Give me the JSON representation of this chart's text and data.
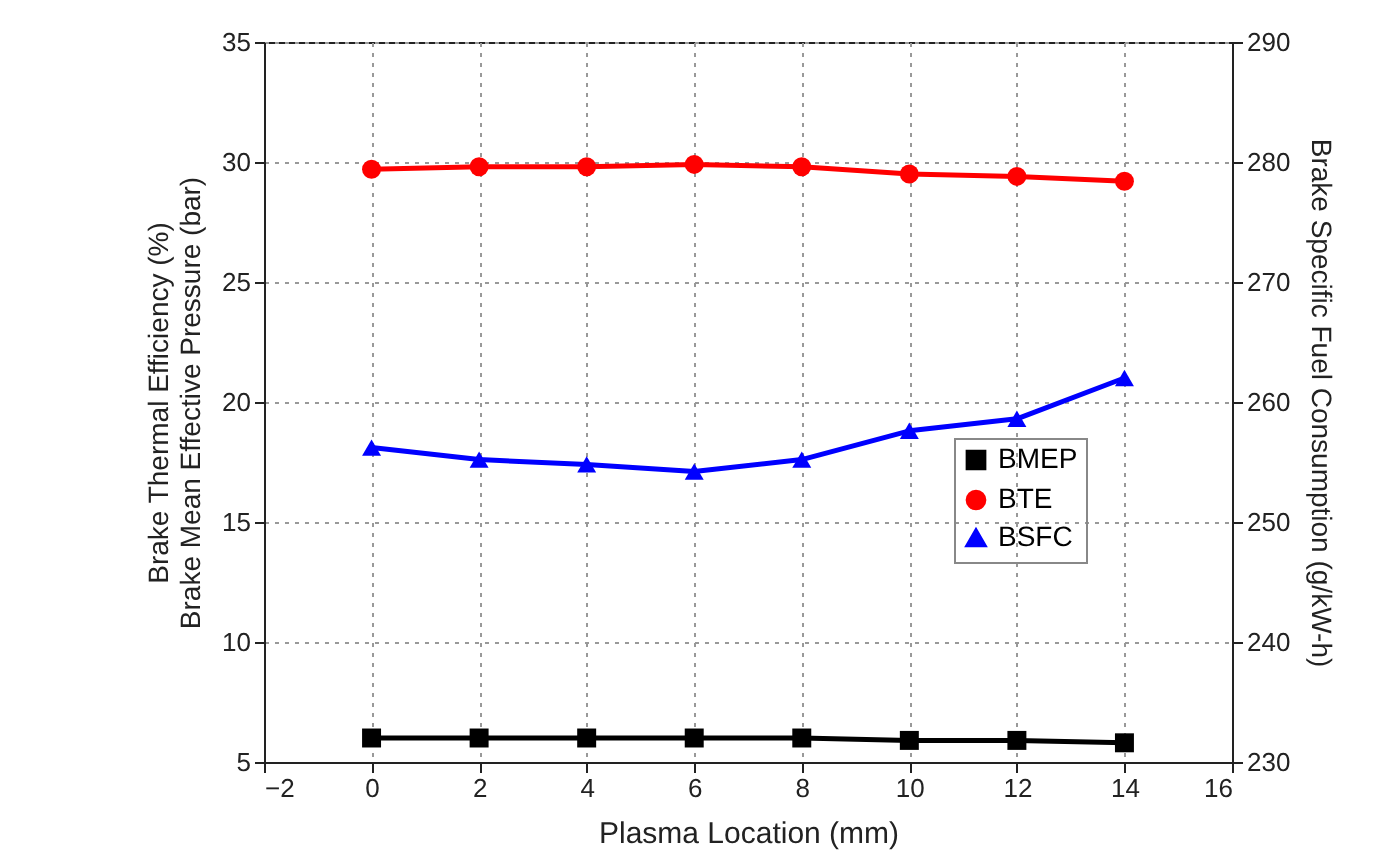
{
  "chart_data": {
    "type": "line",
    "xlabel": "Plasma Location (mm)",
    "ylabel": "Brake Thermal Efficiency (%)\nBrake Mean Effective Pressure (bar)",
    "y2label": "Brake Specific Fuel Consumption (g/kW-h)",
    "x": [
      0,
      2,
      4,
      6,
      8,
      10,
      12,
      14
    ],
    "series": [
      {
        "name": "BMEP",
        "color": "#000000",
        "marker": "square",
        "values": [
          6.0,
          6.0,
          6.0,
          6.0,
          6.0,
          5.9,
          5.9,
          5.8
        ]
      },
      {
        "name": "BTE",
        "color": "#ff0000",
        "marker": "circle",
        "values": [
          29.7,
          29.8,
          29.8,
          29.9,
          29.8,
          29.5,
          29.4,
          29.2
        ]
      },
      {
        "name": "BSFC",
        "color": "#0000ff",
        "marker": "triangle",
        "axis": "y2",
        "values": [
          256.2,
          255.2,
          254.8,
          254.2,
          255.2,
          257.6,
          258.6,
          262.0
        ]
      }
    ],
    "xlim": [
      -2,
      16
    ],
    "xticks": [
      -2,
      0,
      2,
      4,
      6,
      8,
      10,
      12,
      14,
      16
    ],
    "ylim": [
      5,
      35
    ],
    "yticks": [
      5,
      10,
      15,
      20,
      25,
      30,
      35
    ],
    "y2lim": [
      230,
      290
    ],
    "y2ticks": [
      230,
      240,
      250,
      260,
      270,
      280,
      290
    ],
    "grid": true,
    "legend": "right",
    "line_style": "solid"
  }
}
